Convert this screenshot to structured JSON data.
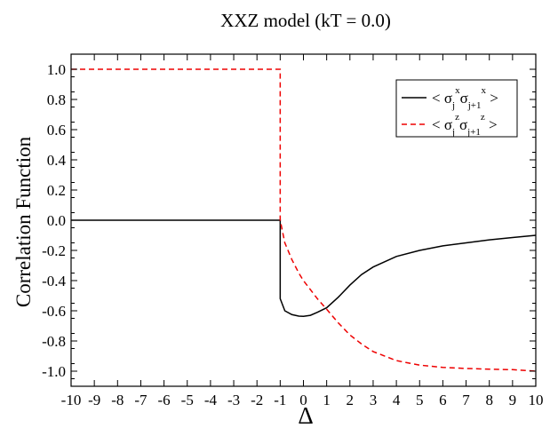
{
  "chart_data": {
    "type": "line",
    "title": "XXZ model (kT = 0.0)",
    "xlabel": "Δ",
    "ylabel": "Correlation Function",
    "xlim": [
      -10,
      10
    ],
    "ylim": [
      -1.1,
      1.1
    ],
    "xticks": [
      -10,
      -9,
      -8,
      -7,
      -6,
      -5,
      -4,
      -3,
      -2,
      -1,
      0,
      1,
      2,
      3,
      4,
      5,
      6,
      7,
      8,
      9,
      10
    ],
    "xtick_labels": [
      "-10",
      "-9",
      "-8",
      "-7",
      "-6",
      "-5",
      "-4",
      "-3",
      "-2",
      "-1",
      "0",
      "1",
      "2",
      "3",
      "4",
      "5",
      "6",
      "7",
      "8",
      "9",
      "10"
    ],
    "yticks": [
      1.0,
      0.8,
      0.6,
      0.4,
      0.2,
      0.0,
      -0.2,
      -0.4,
      -0.6,
      -0.8,
      -1.0
    ],
    "ytick_labels": [
      "1.0",
      "0.8",
      "0.6",
      "0.4",
      "0.2",
      "0.0",
      "-0.2",
      "-0.4",
      "-0.6",
      "-0.8",
      "-1.0"
    ],
    "grid": false,
    "legend_position": "top-right",
    "series": [
      {
        "name": "< σj x σj+1 x >",
        "color": "#000000",
        "dash": "solid",
        "x": [
          -10,
          -1.0,
          -1.0,
          -0.8,
          -0.5,
          -0.2,
          0.0,
          0.3,
          0.6,
          1.0,
          1.5,
          2.0,
          2.5,
          3.0,
          4.0,
          5.0,
          6.0,
          7.0,
          8.0,
          9.0,
          10.0
        ],
        "y": [
          0.0,
          0.0,
          -0.52,
          -0.6,
          -0.625,
          -0.635,
          -0.637,
          -0.63,
          -0.61,
          -0.58,
          -0.51,
          -0.43,
          -0.36,
          -0.31,
          -0.24,
          -0.2,
          -0.17,
          -0.15,
          -0.13,
          -0.115,
          -0.1
        ]
      },
      {
        "name": "< σj z σj+1 z >",
        "color": "#ee0000",
        "dash": "dashed",
        "x": [
          -10,
          -1.0,
          -1.0,
          -0.8,
          -0.5,
          -0.2,
          0.0,
          0.3,
          0.6,
          1.0,
          1.5,
          2.0,
          2.5,
          3.0,
          4.0,
          5.0,
          6.0,
          7.0,
          8.0,
          9.0,
          10.0
        ],
        "y": [
          1.0,
          1.0,
          0.0,
          -0.15,
          -0.26,
          -0.35,
          -0.4,
          -0.46,
          -0.52,
          -0.59,
          -0.68,
          -0.76,
          -0.82,
          -0.87,
          -0.93,
          -0.96,
          -0.975,
          -0.982,
          -0.987,
          -0.99,
          -1.0
        ]
      }
    ],
    "legend": [
      {
        "base": "< σ",
        "sub1": "j",
        "sup1": "x",
        "mid": "σ",
        "sub2": "j+1",
        "sup2": "x",
        "end": ">"
      },
      {
        "base": "< σ",
        "sub1": "j",
        "sup1": "z",
        "mid": "σ",
        "sub2": "j+1",
        "sup2": "z",
        "end": ">"
      }
    ]
  }
}
